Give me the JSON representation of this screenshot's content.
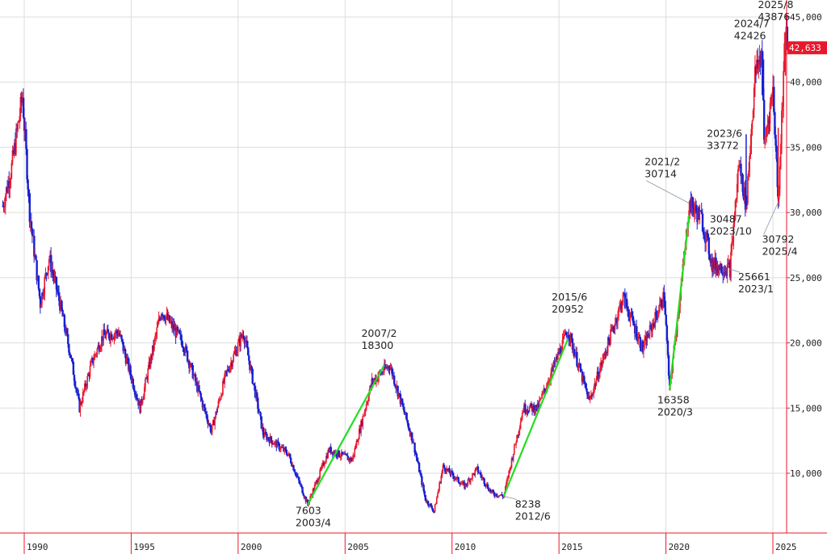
{
  "chart_data": {
    "type": "candlestick",
    "title": "",
    "xlabel": "",
    "ylabel": "",
    "x_range": [
      "1989/01",
      "2025/09"
    ],
    "y_range": [
      7000,
      46000
    ],
    "grid": true,
    "y_ticks": [
      "45,000",
      "40,000",
      "35,000",
      "30,000",
      "25,000",
      "20,000",
      "15,000",
      "10,000"
    ],
    "y_tick_values": [
      45000,
      40000,
      35000,
      30000,
      25000,
      20000,
      15000,
      10000
    ],
    "x_ticks": [
      "1990",
      "1995",
      "2000",
      "2005",
      "2010",
      "2015",
      "2020",
      "2025"
    ],
    "current_price": {
      "label": "42,633",
      "value": 42633
    },
    "colors": {
      "up": "#e8182c",
      "down": "#1820d0",
      "trend": "#22dd22",
      "grid": "#dddddd",
      "axis": "#e8182c",
      "tag": "#e8182c"
    },
    "series": [
      {
        "values": [
          [
            "1989/01",
            30500
          ],
          [
            "1989/06",
            33500
          ],
          [
            "1989/12",
            38900
          ],
          [
            "1990/04",
            30000
          ],
          [
            "1990/10",
            23000
          ],
          [
            "1991/03",
            26500
          ],
          [
            "1991/09",
            23000
          ],
          [
            "1992/03",
            19000
          ],
          [
            "1992/08",
            15000
          ],
          [
            "1993/03",
            18500
          ],
          [
            "1993/09",
            20500
          ],
          [
            "1994/06",
            20800
          ],
          [
            "1995/06",
            15000
          ],
          [
            "1996/06",
            22500
          ],
          [
            "1997/06",
            20000
          ],
          [
            "1998/10",
            13200
          ],
          [
            "1999/06",
            17500
          ],
          [
            "2000/04",
            20800
          ],
          [
            "2001/03",
            13000
          ],
          [
            "2002/05",
            11500
          ],
          [
            "2003/04",
            7603
          ],
          [
            "2004/04",
            11800
          ],
          [
            "2005/05",
            11000
          ],
          [
            "2006/04",
            17000
          ],
          [
            "2007/02",
            18300
          ],
          [
            "2008/03",
            12500
          ],
          [
            "2008/10",
            8000
          ],
          [
            "2009/03",
            7100
          ],
          [
            "2009/08",
            10500
          ],
          [
            "2010/08",
            9000
          ],
          [
            "2011/03",
            10300
          ],
          [
            "2011/11",
            8500
          ],
          [
            "2012/06",
            8238
          ],
          [
            "2013/05",
            15000
          ],
          [
            "2014/01",
            15000
          ],
          [
            "2015/06",
            20952
          ],
          [
            "2016/06",
            15500
          ],
          [
            "2018/01",
            23500
          ],
          [
            "2018/12",
            19500
          ],
          [
            "2019/12",
            23600
          ],
          [
            "2020/03",
            16358
          ],
          [
            "2020/12",
            27400
          ],
          [
            "2021/02",
            30714
          ],
          [
            "2021/09",
            29500
          ],
          [
            "2022/03",
            26000
          ],
          [
            "2023/01",
            25661
          ],
          [
            "2023/06",
            33772
          ],
          [
            "2023/10",
            30487
          ],
          [
            "2024/03",
            40500
          ],
          [
            "2024/07",
            42426
          ],
          [
            "2024/08",
            35000
          ],
          [
            "2025/01",
            39500
          ],
          [
            "2025/04",
            30792
          ],
          [
            "2025/08",
            43876
          ],
          [
            "2025/09",
            42633
          ]
        ]
      }
    ],
    "trend_lines": [
      {
        "from": [
          "2003/04",
          7603
        ],
        "to": [
          "2006/11",
          18300
        ]
      },
      {
        "from": [
          "2012/06",
          8238
        ],
        "to": [
          "2015/06",
          20300
        ]
      },
      {
        "from": [
          "2020/03",
          16358
        ],
        "to": [
          "2021/02",
          29800
        ]
      }
    ],
    "annotations": [
      {
        "date": "2003/4",
        "value": "7603",
        "pos": "below"
      },
      {
        "date": "2007/2",
        "value": "18300",
        "pos": "above"
      },
      {
        "date": "2012/6",
        "value": "8238",
        "pos": "below"
      },
      {
        "date": "2015/6",
        "value": "20952",
        "pos": "above"
      },
      {
        "date": "2020/3",
        "value": "16358",
        "pos": "below"
      },
      {
        "date": "2021/2",
        "value": "30714",
        "pos": "above"
      },
      {
        "date": "2023/1",
        "value": "25661",
        "pos": "below"
      },
      {
        "date": "2023/6",
        "value": "33772",
        "pos": "above"
      },
      {
        "date": "2023/10",
        "value": "30487",
        "pos": "below"
      },
      {
        "date": "2024/7",
        "value": "42426",
        "pos": "above"
      },
      {
        "date": "2025/4",
        "value": "30792",
        "pos": "below"
      },
      {
        "date": "2025/8",
        "value": "43876",
        "pos": "above"
      }
    ]
  }
}
